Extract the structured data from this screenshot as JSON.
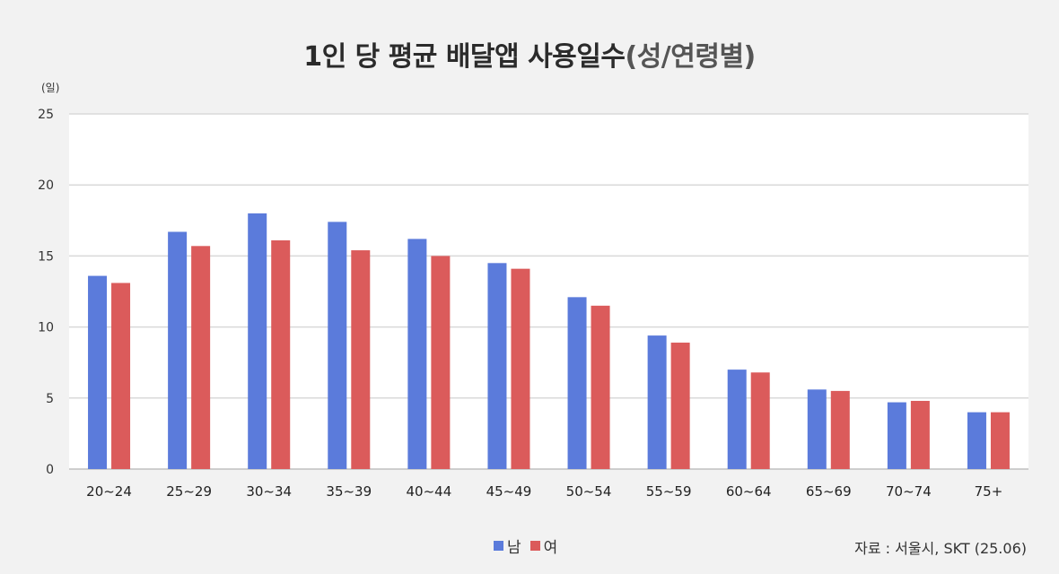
{
  "title_main": "1인 당 평균 배달앱 사용일수",
  "title_sub": "(성/연령별)",
  "source": "자료 : 서울시, SKT (25.06)",
  "colors": {
    "male": "#5b7bdb",
    "female": "#db5b5b",
    "grid": "#d9d9d9",
    "axis": "#bfbfbf"
  },
  "chart_data": {
    "type": "bar",
    "title": "1인 당 평균 배달앱 사용일수(성/연령별)",
    "xlabel": "",
    "ylabel": "(일)",
    "ylim": [
      0,
      25
    ],
    "yticks": [
      0,
      5,
      10,
      15,
      20,
      25
    ],
    "grid": true,
    "legend": "bottom-center",
    "categories": [
      "20~24",
      "25~29",
      "30~34",
      "35~39",
      "40~44",
      "45~49",
      "50~54",
      "55~59",
      "60~64",
      "65~69",
      "70~74",
      "75+"
    ],
    "series": [
      {
        "name": "남",
        "color": "#5b7bdb",
        "values": [
          13.6,
          16.7,
          18.0,
          17.4,
          16.2,
          14.5,
          12.1,
          9.4,
          7.0,
          5.6,
          4.7,
          4.0
        ]
      },
      {
        "name": "여",
        "color": "#db5b5b",
        "values": [
          13.1,
          15.7,
          16.1,
          15.4,
          15.0,
          14.1,
          11.5,
          8.9,
          6.8,
          5.5,
          4.8,
          4.0
        ]
      }
    ]
  }
}
